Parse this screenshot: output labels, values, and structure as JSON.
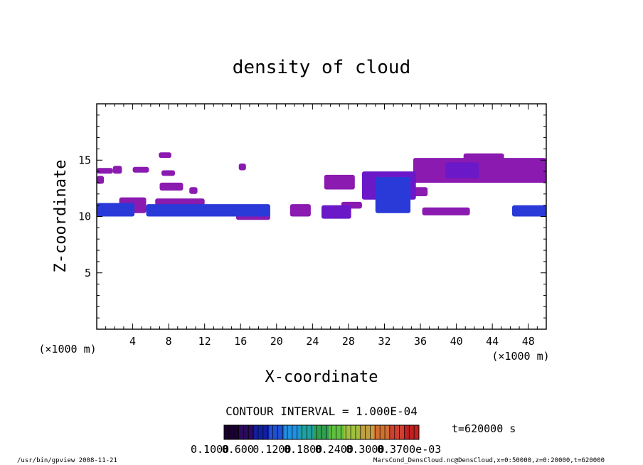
{
  "chart_data": {
    "type": "heatmap",
    "title": "density of cloud",
    "xlabel": "X-coordinate",
    "ylabel": "Z-coordinate",
    "x_unit": "(×1000 m)",
    "x_unit_right": "(×1000 m)",
    "xlim": [
      0,
      50
    ],
    "ylim": [
      0,
      20
    ],
    "x_ticks": [
      4,
      8,
      12,
      16,
      20,
      24,
      28,
      32,
      36,
      40,
      44,
      48
    ],
    "y_ticks": [
      5,
      10,
      15
    ],
    "contour_interval": "CONTOUR INTERVAL = 1.000E-04",
    "time_label": "t=620000 s",
    "colorbar_labels": [
      "0.1000",
      "0.600",
      "0.1200",
      "0.1800",
      "0.2400",
      "0.3000",
      "0.3700e-03"
    ],
    "colorbar_colors": [
      "#1a0030",
      "#2a0a5a",
      "#1020a0",
      "#2050d0",
      "#2090e0",
      "#20a0a0",
      "#30a050",
      "#60c040",
      "#a0c040",
      "#c0a040",
      "#d07030",
      "#d04030",
      "#c02020"
    ],
    "cloud_colors": {
      "low": "#8a1ab0",
      "mid": "#6a18c8",
      "high": "#2a3ad8",
      "peak": "#3070f0"
    },
    "clouds": [
      {
        "x": [
          0,
          4.2
        ],
        "z": [
          10.0,
          11.2
        ],
        "level": "high"
      },
      {
        "x": [
          2.5,
          5.5
        ],
        "z": [
          10.3,
          11.7
        ],
        "level": "low"
      },
      {
        "x": [
          0,
          1.8
        ],
        "z": [
          13.8,
          14.3
        ],
        "level": "low"
      },
      {
        "x": [
          1.8,
          2.8
        ],
        "z": [
          13.8,
          14.5
        ],
        "level": "low"
      },
      {
        "x": [
          0,
          0.8
        ],
        "z": [
          12.9,
          13.6
        ],
        "level": "low"
      },
      {
        "x": [
          4.0,
          5.8
        ],
        "z": [
          13.9,
          14.4
        ],
        "level": "low"
      },
      {
        "x": [
          6.9,
          8.3
        ],
        "z": [
          15.2,
          15.7
        ],
        "level": "low"
      },
      {
        "x": [
          7.2,
          8.7
        ],
        "z": [
          13.6,
          14.1
        ],
        "level": "low"
      },
      {
        "x": [
          7.0,
          9.6
        ],
        "z": [
          12.3,
          13.0
        ],
        "level": "low"
      },
      {
        "x": [
          10.3,
          11.2
        ],
        "z": [
          12.0,
          12.6
        ],
        "level": "low"
      },
      {
        "x": [
          6.5,
          12.0
        ],
        "z": [
          11.0,
          11.6
        ],
        "level": "low"
      },
      {
        "x": [
          5.5,
          19.3
        ],
        "z": [
          10.0,
          11.1
        ],
        "level": "high"
      },
      {
        "x": [
          15.5,
          19.3
        ],
        "z": [
          9.7,
          10.6
        ],
        "level": "low"
      },
      {
        "x": [
          15.8,
          16.6
        ],
        "z": [
          14.1,
          14.7
        ],
        "level": "low"
      },
      {
        "x": [
          21.5,
          23.8
        ],
        "z": [
          10.0,
          11.1
        ],
        "level": "low"
      },
      {
        "x": [
          25.0,
          28.3
        ],
        "z": [
          9.8,
          11.0
        ],
        "level": "mid"
      },
      {
        "x": [
          27.2,
          29.5
        ],
        "z": [
          10.7,
          11.3
        ],
        "level": "low"
      },
      {
        "x": [
          25.3,
          28.7
        ],
        "z": [
          12.4,
          13.7
        ],
        "level": "low"
      },
      {
        "x": [
          29.5,
          35.5
        ],
        "z": [
          11.5,
          14.0
        ],
        "level": "mid"
      },
      {
        "x": [
          31.0,
          34.9
        ],
        "z": [
          10.3,
          13.5
        ],
        "level": "high"
      },
      {
        "x": [
          35.0,
          36.8
        ],
        "z": [
          11.8,
          12.6
        ],
        "level": "low"
      },
      {
        "x": [
          36.2,
          41.5
        ],
        "z": [
          10.1,
          10.8
        ],
        "level": "low"
      },
      {
        "x": [
          35.2,
          50.0
        ],
        "z": [
          13.0,
          15.2
        ],
        "level": "low"
      },
      {
        "x": [
          38.8,
          42.5
        ],
        "z": [
          13.4,
          14.8
        ],
        "level": "mid"
      },
      {
        "x": [
          40.8,
          45.3
        ],
        "z": [
          15.0,
          15.6
        ],
        "level": "low"
      },
      {
        "x": [
          46.2,
          50.0
        ],
        "z": [
          10.0,
          11.0
        ],
        "level": "high"
      }
    ]
  },
  "footer": {
    "program": "/usr/bin/gpview   2008-11-21",
    "source": "MarsCond_DensCloud.nc@DensCloud,x=0:50000,z=0:20000,t=620000"
  }
}
